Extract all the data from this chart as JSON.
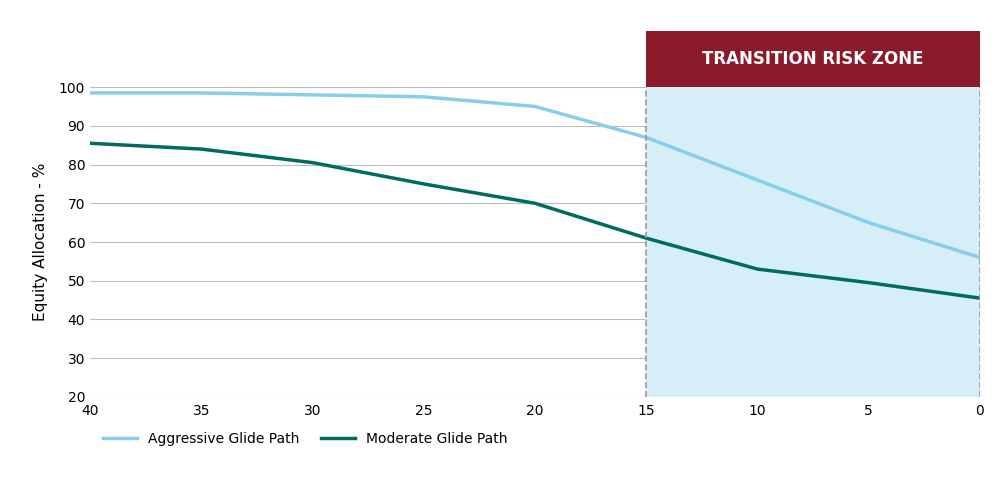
{
  "aggressive_x": [
    40,
    35,
    30,
    25,
    20,
    15,
    10,
    5,
    0
  ],
  "aggressive_y": [
    98.5,
    98.5,
    98,
    97.5,
    95,
    87,
    76,
    65,
    56
  ],
  "moderate_x": [
    40,
    35,
    30,
    25,
    20,
    15,
    10,
    5,
    0
  ],
  "moderate_y": [
    85.5,
    84,
    80.5,
    75,
    70,
    61,
    53,
    49.5,
    45.5
  ],
  "aggressive_color": "#87CEEB",
  "moderate_color": "#006B5E",
  "transition_zone_x": 15,
  "transition_bg_color": "#D6EEF8",
  "transition_header_color": "#8B1A2A",
  "transition_label": "TRANSITION RISK ZONE",
  "xlim": [
    40,
    0
  ],
  "ylim": [
    20,
    100
  ],
  "xticks": [
    40,
    35,
    30,
    25,
    20,
    15,
    10,
    5,
    0
  ],
  "yticks": [
    20,
    30,
    40,
    50,
    60,
    70,
    80,
    90,
    100
  ],
  "ylabel": "Equity Allocation - %",
  "legend_aggressive": "Aggressive Glide Path",
  "legend_moderate": "Moderate Glide Path",
  "bg_color": "#FFFFFF",
  "grid_color": "#BBBBBB",
  "line_width": 2.5,
  "dashed_color": "#999999"
}
